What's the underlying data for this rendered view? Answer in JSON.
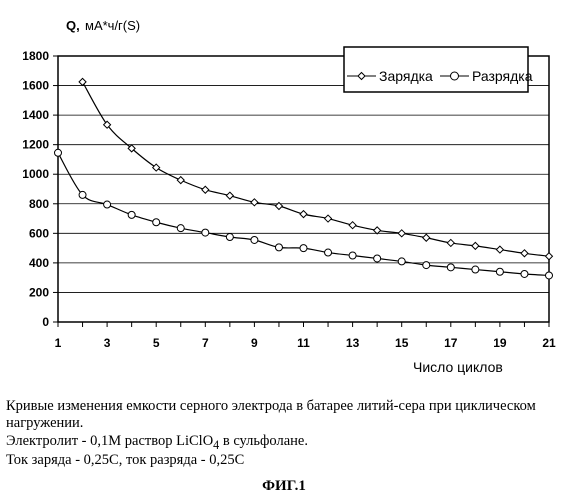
{
  "chart_data": {
    "type": "line",
    "ylabel_prefix": "Q,",
    "ylabel": "мА*ч/г(S)",
    "xlabel": "Число циклов",
    "x_ticks": [
      1,
      3,
      5,
      7,
      9,
      11,
      13,
      15,
      17,
      19,
      21
    ],
    "y_ticks": [
      0,
      200,
      400,
      600,
      800,
      1000,
      1200,
      1400,
      1600,
      1800
    ],
    "xlim": [
      1,
      21
    ],
    "ylim": [
      0,
      1800
    ],
    "grid": "horizontal",
    "legend_position": "top-right",
    "series": [
      {
        "name": "Зарядка",
        "marker": "diamond",
        "x": [
          2,
          3,
          4,
          5,
          6,
          7,
          8,
          9,
          10,
          11,
          12,
          13,
          14,
          15,
          16,
          17,
          18,
          19,
          20,
          21
        ],
        "values": [
          1625,
          1335,
          1175,
          1045,
          960,
          895,
          855,
          810,
          785,
          730,
          700,
          655,
          620,
          600,
          570,
          535,
          515,
          490,
          465,
          445
        ]
      },
      {
        "name": "Разрядка",
        "marker": "circle",
        "x": [
          1,
          2,
          3,
          4,
          5,
          6,
          7,
          8,
          9,
          10,
          11,
          12,
          13,
          14,
          15,
          16,
          17,
          18,
          19,
          20,
          21
        ],
        "values": [
          1145,
          860,
          795,
          725,
          675,
          635,
          605,
          575,
          555,
          505,
          500,
          470,
          450,
          430,
          410,
          385,
          370,
          355,
          340,
          325,
          315
        ]
      }
    ]
  },
  "caption": {
    "line1": "Кривые изменения емкости серного электрода в батарее литий-сера при циклическом нагружении.",
    "line2_before": "Электролит - 0,1М раствор LiClO",
    "line2_sub": "4",
    "line2_after": " в сульфолане.",
    "line3": "Ток заряда - 0,25С, ток разряда - 0,25С",
    "figure_label": "ФИГ.1"
  }
}
